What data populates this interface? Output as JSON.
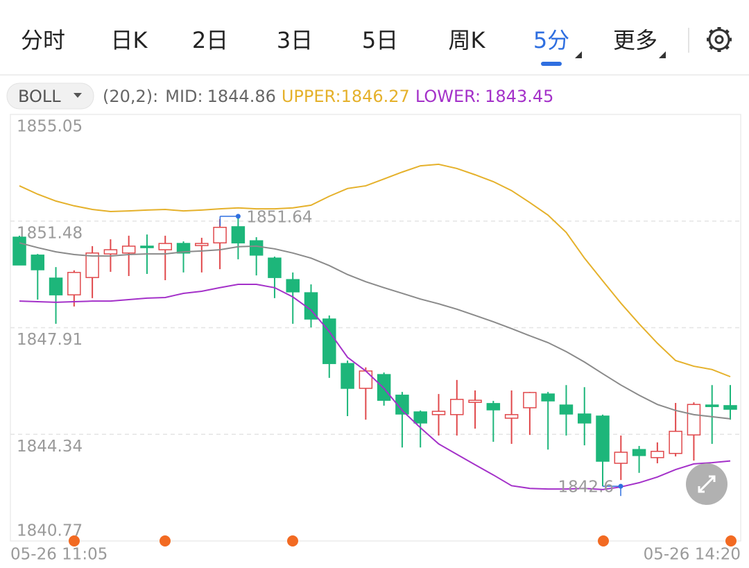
{
  "tabs": [
    "分时",
    "日K",
    "2日",
    "3日",
    "5日",
    "周K",
    "5分",
    "更多"
  ],
  "active_tab": "5分",
  "chart_data": {
    "type": "candlestick",
    "indicator": "BOLL",
    "indicator_params": "(20,2):",
    "categories": [
      "05-26 11:05",
      null,
      null,
      null,
      null,
      null,
      null,
      null,
      null,
      null,
      null,
      null,
      null,
      null,
      null,
      null,
      null,
      null,
      null,
      null,
      null,
      null,
      null,
      null,
      null,
      null,
      null,
      null,
      null,
      null,
      null,
      null,
      null,
      null,
      null,
      null,
      null,
      null,
      null,
      "05-26 14:20"
    ],
    "open": [
      1850.94,
      1850.34,
      1849.57,
      1849.01,
      1849.59,
      1850.38,
      1850.41,
      1850.64,
      1850.52,
      1850.73,
      1850.66,
      1850.75,
      1851.29,
      1850.82,
      1850.24,
      1849.52,
      1849.08,
      1848.2,
      1846.71,
      1845.88,
      1846.34,
      1845.65,
      1845.09,
      1845.0,
      1845.0,
      1845.41,
      1845.37,
      1844.88,
      1845.23,
      1845.69,
      1845.32,
      1845.02,
      1844.95,
      1843.37,
      1843.83,
      1843.56,
      1843.7,
      1844.32,
      1845.32,
      1845.3
    ],
    "high": [
      1850.99,
      1850.38,
      1849.94,
      1849.83,
      1850.64,
      1850.87,
      1850.99,
      1851.03,
      1850.99,
      1850.8,
      1850.92,
      1851.55,
      1851.64,
      1850.94,
      1850.29,
      1849.76,
      1849.36,
      1848.32,
      1846.81,
      1846.58,
      1846.41,
      1845.76,
      1845.14,
      1845.69,
      1846.16,
      1845.81,
      1845.46,
      1845.81,
      1845.76,
      1845.76,
      1845.99,
      1845.92,
      1845.0,
      1844.3,
      1843.95,
      1844.07,
      1845.39,
      1845.41,
      1845.99,
      1845.99
    ],
    "low": [
      1850.01,
      1848.85,
      1848.04,
      1848.62,
      1848.9,
      1849.78,
      1849.64,
      1849.71,
      1849.5,
      1849.76,
      1849.76,
      1849.87,
      1850.2,
      1849.66,
      1848.9,
      1848.04,
      1847.92,
      1846.23,
      1844.95,
      1844.83,
      1845.3,
      1843.9,
      1843.9,
      1844.3,
      1844.3,
      1844.53,
      1844.09,
      1844.02,
      1844.32,
      1843.83,
      1844.3,
      1843.97,
      1842.6,
      1842.81,
      1843.05,
      1843.37,
      1843.6,
      1843.46,
      1844.02,
      1844.83
    ],
    "close": [
      1850.01,
      1849.85,
      1849.01,
      1849.76,
      1850.41,
      1850.52,
      1850.64,
      1850.59,
      1850.73,
      1850.41,
      1850.73,
      1851.27,
      1850.75,
      1850.34,
      1849.59,
      1849.11,
      1848.2,
      1846.71,
      1845.88,
      1846.46,
      1845.48,
      1845.02,
      1844.72,
      1845.11,
      1845.51,
      1845.48,
      1845.16,
      1845.0,
      1845.74,
      1845.46,
      1845.02,
      1844.72,
      1843.44,
      1843.74,
      1843.63,
      1843.77,
      1844.44,
      1845.34,
      1845.27,
      1845.18
    ],
    "up_color": "#e0484b",
    "down_color": "#1db67a",
    "bands": [
      {
        "name": "MID:",
        "color": "#8a8a8a",
        "values": [
          1850.75,
          1850.59,
          1850.45,
          1850.36,
          1850.31,
          1850.31,
          1850.36,
          1850.38,
          1850.38,
          1850.45,
          1850.48,
          1850.52,
          1850.62,
          1850.64,
          1850.55,
          1850.41,
          1850.24,
          1849.99,
          1849.69,
          1849.45,
          1849.25,
          1849.06,
          1848.87,
          1848.71,
          1848.53,
          1848.32,
          1848.11,
          1847.88,
          1847.64,
          1847.41,
          1847.11,
          1846.76,
          1846.37,
          1845.99,
          1845.65,
          1845.34,
          1845.14,
          1845.0,
          1844.93,
          1844.86
        ]
      },
      {
        "name": "UPPER:",
        "color": "#e5b12b",
        "values": [
          1852.66,
          1852.38,
          1852.15,
          1851.99,
          1851.87,
          1851.8,
          1851.82,
          1851.85,
          1851.87,
          1851.82,
          1851.85,
          1851.89,
          1851.92,
          1851.89,
          1851.89,
          1851.92,
          1852.01,
          1852.31,
          1852.57,
          1852.66,
          1852.89,
          1853.12,
          1853.33,
          1853.38,
          1853.24,
          1853.03,
          1852.8,
          1852.5,
          1852.1,
          1851.68,
          1851.1,
          1850.24,
          1849.48,
          1848.73,
          1848.04,
          1847.39,
          1846.81,
          1846.62,
          1846.51,
          1846.27
        ]
      },
      {
        "name": "LOWER:",
        "color": "#a431c9",
        "values": [
          1848.8,
          1848.78,
          1848.76,
          1848.78,
          1848.8,
          1848.8,
          1848.85,
          1848.9,
          1848.92,
          1849.06,
          1849.13,
          1849.25,
          1849.36,
          1849.36,
          1849.25,
          1848.94,
          1848.5,
          1847.78,
          1846.92,
          1846.46,
          1845.88,
          1845.14,
          1844.56,
          1844.02,
          1843.67,
          1843.32,
          1842.98,
          1842.62,
          1842.53,
          1842.51,
          1842.51,
          1842.53,
          1842.49,
          1842.58,
          1842.72,
          1842.91,
          1843.16,
          1843.35,
          1843.39,
          1843.45
        ]
      }
    ],
    "ylim": [
      1840.77,
      1855.05
    ],
    "yticks": [
      1855.05,
      1851.48,
      1847.91,
      1844.34,
      1840.77
    ],
    "grid": true
  }
}
